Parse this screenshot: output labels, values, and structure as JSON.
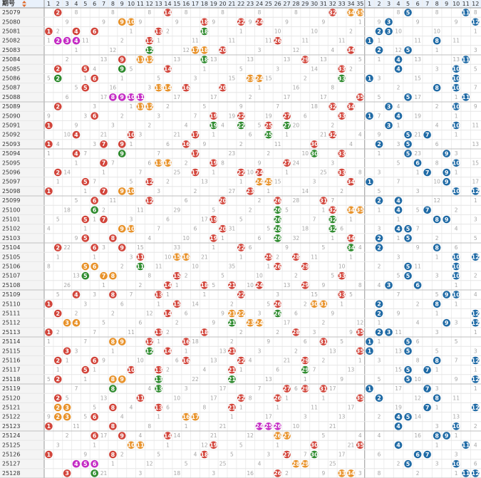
{
  "header": {
    "period_label": "期号",
    "sort_icon": "sort-arrows-icon"
  },
  "colors": {
    "front_hit": "#d2443a",
    "back_hit": "#1f6aa5",
    "repeat": "#2e8b2e",
    "consecutive": "#e8922a",
    "triple": "#c42bc4",
    "missing_text": "#a6a6a6",
    "header_bg": "#e9f1fb"
  },
  "chart_data": {
    "type": "table",
    "front_zone": {
      "min": 1,
      "max": 35
    },
    "back_zone": {
      "min": 1,
      "max": 12
    },
    "columns_front": [
      "1",
      "2",
      "3",
      "4",
      "5",
      "6",
      "7",
      "8",
      "9",
      "10",
      "11",
      "12",
      "13",
      "14",
      "15",
      "16",
      "17",
      "18",
      "19",
      "20",
      "21",
      "22",
      "23",
      "24",
      "25",
      "26",
      "27",
      "28",
      "29",
      "30",
      "31",
      "32",
      "33",
      "34",
      "35"
    ],
    "columns_back": [
      "1",
      "2",
      "3",
      "4",
      "5",
      "6",
      "7",
      "8",
      "9",
      "10",
      "11",
      "12"
    ],
    "draws": [
      {
        "period": "25079",
        "front": [
          2,
          14,
          32,
          34,
          35
        ],
        "back": [
          5,
          11
        ]
      },
      {
        "period": "25080",
        "front": [
          9,
          10,
          18,
          22,
          24
        ],
        "back": [
          3,
          12
        ]
      },
      {
        "period": "25081",
        "front": [
          1,
          4,
          6,
          13,
          18
        ],
        "back": [
          2,
          3
        ]
      },
      {
        "period": "25082",
        "front": [
          2,
          3,
          4,
          12,
          26
        ],
        "back": [
          1,
          8
        ]
      },
      {
        "period": "25083",
        "front": [
          12,
          17,
          18,
          20,
          34
        ],
        "back": [
          2,
          5
        ]
      },
      {
        "period": "25084",
        "front": [
          9,
          11,
          12,
          18,
          29
        ],
        "back": [
          4,
          11
        ]
      },
      {
        "period": "25085",
        "front": [
          2,
          5,
          9,
          14,
          33
        ],
        "back": [
          4,
          10
        ]
      },
      {
        "period": "25086",
        "front": [
          2,
          6,
          23,
          24,
          33
        ],
        "back": [
          1,
          10
        ]
      },
      {
        "period": "25087",
        "front": [
          5,
          13,
          14,
          16,
          20
        ],
        "back": [
          8,
          10
        ]
      },
      {
        "period": "25088",
        "front": [
          8,
          9,
          10,
          11,
          35
        ],
        "back": [
          5,
          11
        ]
      },
      {
        "period": "25089",
        "front": [
          2,
          11,
          12,
          32,
          34
        ],
        "back": [
          3,
          10
        ]
      },
      {
        "period": "25090",
        "front": [
          6,
          19,
          22,
          27,
          33
        ],
        "back": [
          1,
          4
        ]
      },
      {
        "period": "25091",
        "front": [
          1,
          19,
          22,
          25,
          27
        ],
        "back": [
          3,
          10
        ]
      },
      {
        "period": "25092",
        "front": [
          4,
          10,
          17,
          25,
          32
        ],
        "back": [
          5,
          7
        ]
      },
      {
        "period": "25093",
        "front": [
          1,
          7,
          9,
          16,
          30
        ],
        "back": [
          2,
          5
        ]
      },
      {
        "period": "25094",
        "front": [
          4,
          9,
          17,
          30,
          33
        ],
        "back": [
          5,
          9
        ]
      },
      {
        "period": "25095",
        "front": [
          7,
          13,
          14,
          19,
          27
        ],
        "back": [
          6,
          10
        ]
      },
      {
        "period": "25096",
        "front": [
          2,
          17,
          22,
          24,
          33
        ],
        "back": [
          7,
          9
        ]
      },
      {
        "period": "25097",
        "front": [
          5,
          12,
          24,
          25,
          34
        ],
        "back": [
          1,
          9
        ]
      },
      {
        "period": "25098",
        "front": [
          1,
          7,
          9,
          10,
          23
        ],
        "back": [
          10,
          12
        ]
      },
      {
        "period": "25099",
        "front": [
          6,
          12,
          20,
          26,
          31
        ],
        "back": [
          2,
          4
        ]
      },
      {
        "period": "25100",
        "front": [
          6,
          26,
          32,
          34,
          35
        ],
        "back": [
          4,
          7
        ]
      },
      {
        "period": "25101",
        "front": [
          5,
          7,
          19,
          26,
          32
        ],
        "back": [
          8,
          9
        ]
      },
      {
        "period": "25102",
        "front": [
          9,
          10,
          20,
          26,
          32
        ],
        "back": [
          4,
          5
        ]
      },
      {
        "period": "25103",
        "front": [
          5,
          8,
          19,
          26,
          34
        ],
        "back": [
          2,
          5
        ]
      },
      {
        "period": "25104",
        "front": [
          2,
          6,
          9,
          22,
          34
        ],
        "back": [
          2,
          8
        ]
      },
      {
        "period": "25105",
        "front": [
          11,
          15,
          16,
          25,
          28
        ],
        "back": [
          10,
          12
        ]
      },
      {
        "period": "25106",
        "front": [
          5,
          6,
          11,
          26,
          29
        ],
        "back": [
          5,
          10
        ]
      },
      {
        "period": "25107",
        "front": [
          5,
          7,
          8,
          15,
          33
        ],
        "back": [
          5,
          10
        ]
      },
      {
        "period": "25108",
        "front": [
          14,
          18,
          21,
          24,
          29
        ],
        "back": [
          3,
          6
        ]
      },
      {
        "period": "25109",
        "front": [
          4,
          8,
          13,
          22,
          33
        ],
        "back": [
          9,
          10
        ]
      },
      {
        "period": "25110",
        "front": [
          1,
          15,
          26,
          30,
          31
        ],
        "back": [
          2,
          8
        ]
      },
      {
        "period": "25111",
        "front": [
          2,
          14,
          21,
          22,
          26
        ],
        "back": [
          2,
          12
        ]
      },
      {
        "period": "25112",
        "front": [
          3,
          4,
          21,
          23,
          24
        ],
        "back": [
          9,
          12
        ]
      },
      {
        "period": "25113",
        "front": [
          1,
          13,
          18,
          28,
          35
        ],
        "back": [
          2,
          3
        ]
      },
      {
        "period": "25114",
        "front": [
          8,
          9,
          12,
          16,
          31
        ],
        "back": [
          1,
          5
        ]
      },
      {
        "period": "25115",
        "front": [
          3,
          12,
          14,
          21,
          35
        ],
        "back": [
          1,
          5
        ]
      },
      {
        "period": "25116",
        "front": [
          2,
          6,
          16,
          22,
          29
        ],
        "back": [
          8,
          12
        ]
      },
      {
        "period": "25117",
        "front": [
          5,
          10,
          13,
          21,
          29
        ],
        "back": [
          5,
          7
        ]
      },
      {
        "period": "25118",
        "front": [
          2,
          8,
          9,
          13,
          21
        ],
        "back": [
          5,
          12
        ]
      },
      {
        "period": "25119",
        "front": [
          8,
          13,
          27,
          29,
          31
        ],
        "back": [
          1,
          7
        ]
      },
      {
        "period": "25120",
        "front": [
          2,
          11,
          22,
          26,
          35
        ],
        "back": [
          2,
          8
        ]
      },
      {
        "period": "25121",
        "front": [
          2,
          3,
          8,
          13,
          21
        ],
        "back": [
          7,
          12
        ]
      },
      {
        "period": "25122",
        "front": [
          2,
          3,
          6,
          16,
          17
        ],
        "back": [
          4,
          5
        ]
      },
      {
        "period": "25123",
        "front": [
          1,
          8,
          24,
          25,
          26
        ],
        "back": [
          4,
          10
        ]
      },
      {
        "period": "25124",
        "front": [
          6,
          9,
          14,
          26,
          27
        ],
        "back": [
          8,
          9
        ]
      },
      {
        "period": "25125",
        "front": [
          10,
          11,
          19,
          30,
          35
        ],
        "back": [
          4,
          11
        ]
      },
      {
        "period": "25126",
        "front": [
          1,
          8,
          18,
          27,
          30
        ],
        "back": [
          6,
          7
        ]
      },
      {
        "period": "25127",
        "front": [
          4,
          5,
          6,
          28,
          29
        ],
        "back": [
          5,
          10
        ]
      },
      {
        "period": "25128",
        "front": [
          3,
          6,
          26,
          33,
          34
        ],
        "back": [
          11,
          12
        ]
      }
    ]
  }
}
